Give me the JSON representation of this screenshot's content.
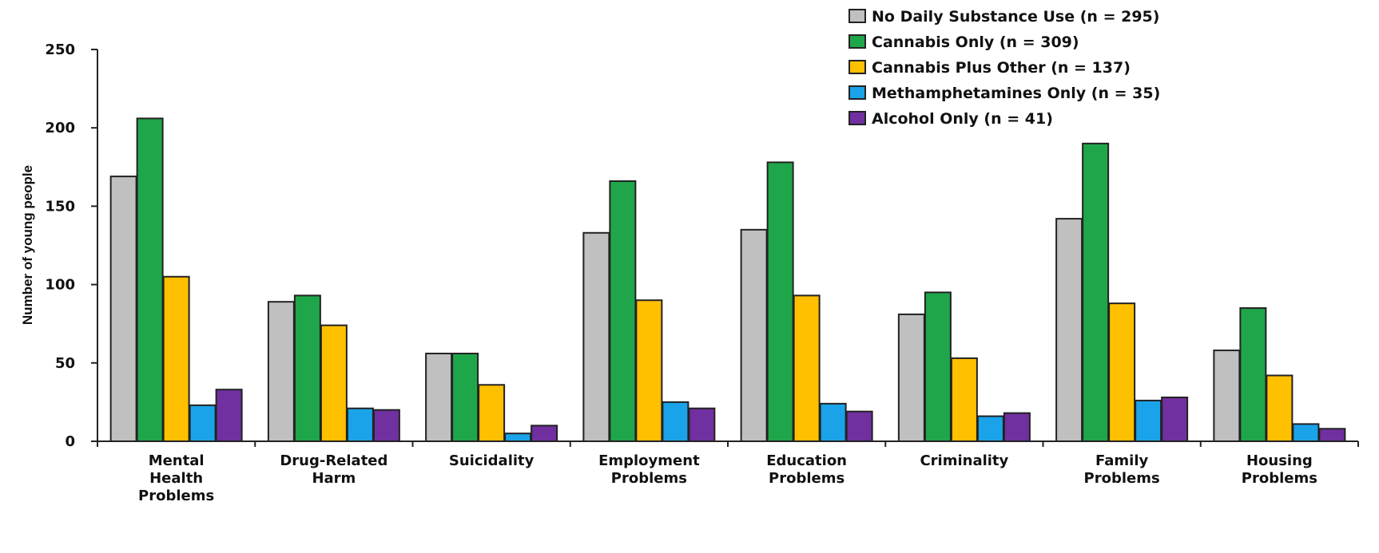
{
  "chart_data": {
    "type": "bar",
    "title": "",
    "xlabel": "",
    "ylabel": "Number of young people",
    "ylim": [
      0,
      250
    ],
    "yticks": [
      0,
      50,
      100,
      150,
      200,
      250
    ],
    "grid": false,
    "legend_position": "top-right",
    "categories": [
      [
        "Mental",
        "Health",
        "Problems"
      ],
      [
        "Drug-Related",
        "Harm"
      ],
      [
        "Suicidality"
      ],
      [
        "Employment",
        "Problems"
      ],
      [
        "Education",
        "Problems"
      ],
      [
        "Criminality"
      ],
      [
        "Family",
        "Problems"
      ],
      [
        "Housing",
        "Problems"
      ]
    ],
    "series": [
      {
        "name": "No Daily Substance Use (n = 295)",
        "color": "#c0c0c0",
        "values": [
          169,
          89,
          56,
          133,
          135,
          81,
          142,
          58
        ]
      },
      {
        "name": "Cannabis Only (n = 309)",
        "color": "#1fa64a",
        "values": [
          206,
          93,
          56,
          166,
          178,
          95,
          190,
          85
        ]
      },
      {
        "name": "Cannabis Plus Other (n = 137)",
        "color": "#ffc000",
        "values": [
          105,
          74,
          36,
          90,
          93,
          53,
          88,
          42
        ]
      },
      {
        "name": "Methamphetamines Only (n = 35)",
        "color": "#1aa3e8",
        "values": [
          23,
          21,
          5,
          25,
          24,
          16,
          26,
          11
        ]
      },
      {
        "name": "Alcohol Only (n = 41)",
        "color": "#7030a0",
        "values": [
          33,
          20,
          10,
          21,
          19,
          18,
          28,
          8
        ]
      }
    ]
  }
}
